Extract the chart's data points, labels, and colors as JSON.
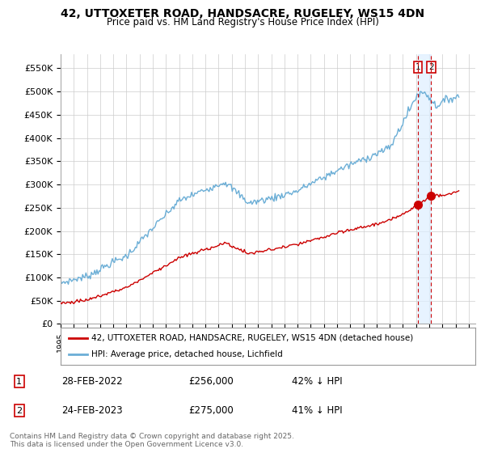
{
  "title_line1": "42, UTTOXETER ROAD, HANDSACRE, RUGELEY, WS15 4DN",
  "title_line2": "Price paid vs. HM Land Registry's House Price Index (HPI)",
  "legend_label1": "42, UTTOXETER ROAD, HANDSACRE, RUGELEY, WS15 4DN (detached house)",
  "legend_label2": "HPI: Average price, detached house, Lichfield",
  "sale1_label": "1",
  "sale1_date": "28-FEB-2022",
  "sale1_price": "£256,000",
  "sale1_note": "42% ↓ HPI",
  "sale2_label": "2",
  "sale2_date": "24-FEB-2023",
  "sale2_price": "£275,000",
  "sale2_note": "41% ↓ HPI",
  "footer": "Contains HM Land Registry data © Crown copyright and database right 2025.\nThis data is licensed under the Open Government Licence v3.0.",
  "hpi_color": "#6baed6",
  "price_color": "#cc0000",
  "sale_marker_color": "#cc0000",
  "vline_color": "#cc0000",
  "background_color": "#ffffff",
  "grid_color": "#cccccc",
  "ylim": [
    0,
    580000
  ],
  "yticks": [
    0,
    50000,
    100000,
    150000,
    200000,
    250000,
    300000,
    350000,
    400000,
    450000,
    500000,
    550000
  ],
  "ytick_labels": [
    "£0",
    "£50K",
    "£100K",
    "£150K",
    "£200K",
    "£250K",
    "£300K",
    "£350K",
    "£400K",
    "£450K",
    "£500K",
    "£550K"
  ],
  "xlim_start": 1995.0,
  "xlim_end": 2026.5,
  "sale1_x": 2022.15,
  "sale2_x": 2023.15,
  "sale1_y": 256000,
  "sale2_y": 275000
}
